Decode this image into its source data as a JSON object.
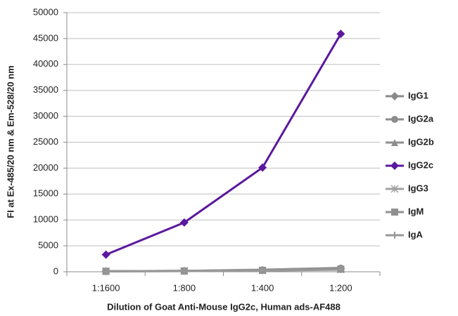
{
  "chart_data": {
    "type": "line",
    "y_label": "FI at Ex-485/20 nm & Em-528/20 nm",
    "x_label": "Dilution of Goat Anti-Mouse IgG2c, Human ads-AF488",
    "categories": [
      "1:1600",
      "1:800",
      "1:400",
      "1:200"
    ],
    "ylim": [
      0,
      50000
    ],
    "yticks": [
      0,
      5000,
      10000,
      15000,
      20000,
      25000,
      30000,
      35000,
      40000,
      45000,
      50000
    ],
    "grid": true,
    "legend": "right",
    "series": [
      {
        "name": "IgG1",
        "color": "#8a8a8a",
        "marker": "diamond",
        "values": [
          100,
          150,
          300,
          600
        ]
      },
      {
        "name": "IgG2a",
        "color": "#8c8c8c",
        "marker": "circle",
        "values": [
          120,
          160,
          350,
          700
        ]
      },
      {
        "name": "IgG2b",
        "color": "#8e8e8e",
        "marker": "triangle",
        "values": [
          110,
          170,
          400,
          750
        ]
      },
      {
        "name": "IgG2c",
        "color": "#5b189e",
        "marker": "diamond",
        "values": [
          3300,
          9500,
          20100,
          45900
        ]
      },
      {
        "name": "IgG3",
        "color": "#a0a0a0",
        "marker": "star",
        "values": [
          90,
          140,
          250,
          450
        ]
      },
      {
        "name": "IgM",
        "color": "#909090",
        "marker": "square",
        "values": [
          100,
          150,
          280,
          500
        ]
      },
      {
        "name": "IgA",
        "color": "#989898",
        "marker": "plus",
        "values": [
          80,
          130,
          220,
          400
        ]
      }
    ]
  }
}
